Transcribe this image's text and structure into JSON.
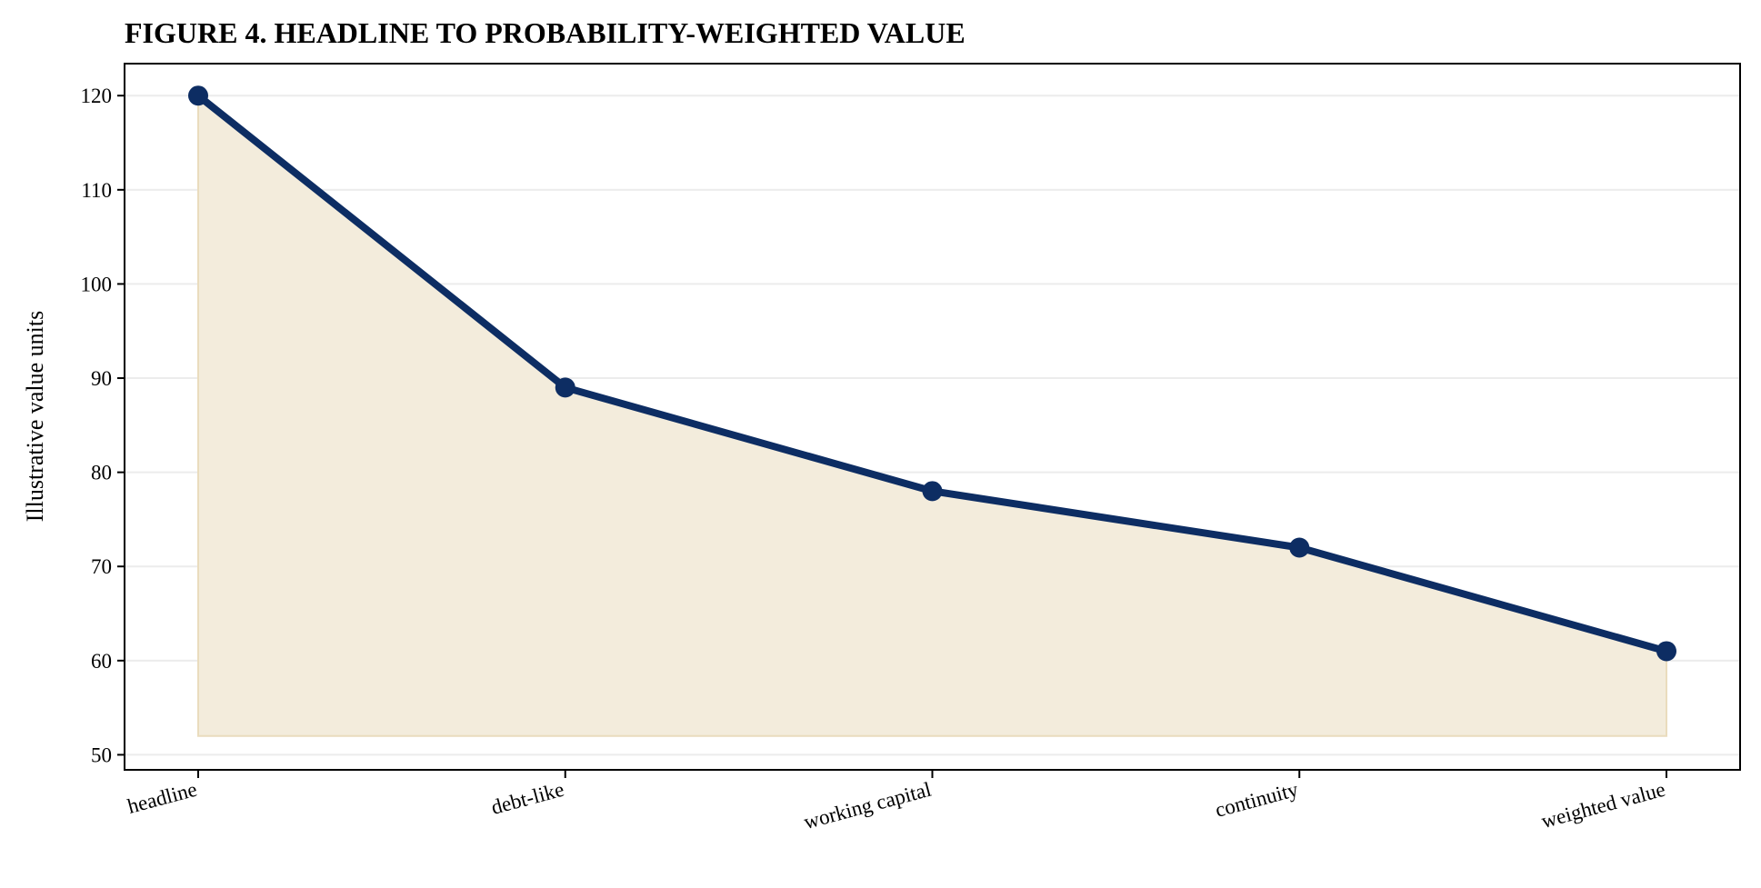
{
  "chart_data": {
    "type": "area",
    "title": "FIGURE 4. HEADLINE TO PROBABILITY-WEIGHTED VALUE",
    "xlabel": "",
    "ylabel": "Illustrative value units",
    "categories": [
      "headline",
      "debt-like",
      "working capital",
      "continuity",
      "weighted value"
    ],
    "series": [
      {
        "values": [
          120,
          89,
          78,
          72,
          61
        ]
      }
    ],
    "fill_baseline": 52,
    "ylim": [
      48.4,
      123.4
    ],
    "yticks": [
      50,
      60,
      70,
      80,
      90,
      100,
      110,
      120
    ],
    "grid": "horizontal",
    "colors": {
      "line": "#0d2d63",
      "fill": "#f3ecdc",
      "fill_edge": "#eadcbd",
      "grid": "#ececec",
      "axis": "#000000"
    }
  }
}
